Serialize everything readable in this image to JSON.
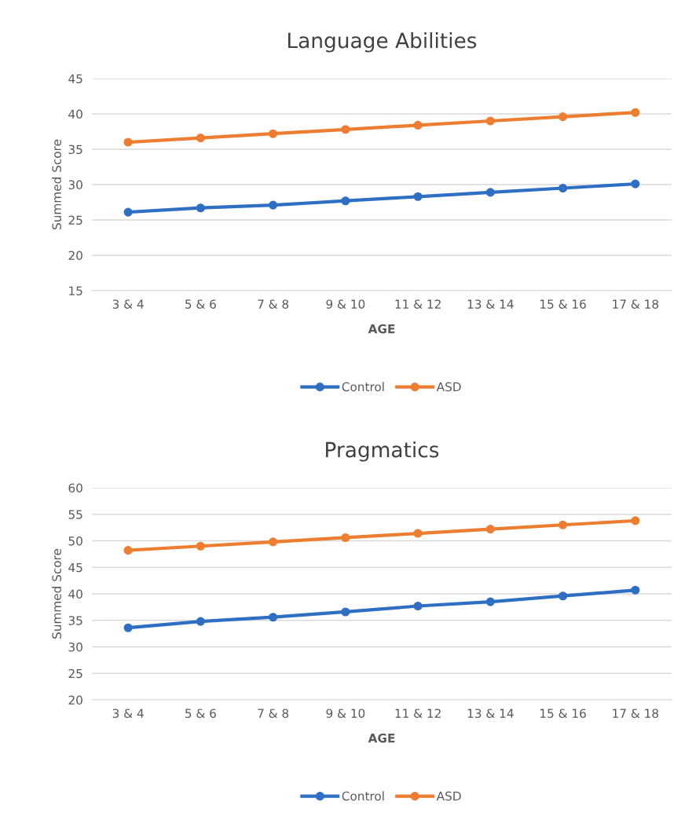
{
  "chart_data": [
    {
      "type": "line",
      "title": "Language Abilities",
      "xlabel": "AGE",
      "ylabel": "Summed Score",
      "categories": [
        "3 & 4",
        "5 & 6",
        "7 & 8",
        "9 & 10",
        "11 & 12",
        "13 & 14",
        "15 & 16",
        "17 & 18"
      ],
      "series": [
        {
          "name": "Control",
          "color": "#2e6fc4",
          "values": [
            26.1,
            26.7,
            27.1,
            27.7,
            28.3,
            28.9,
            29.5,
            30.1
          ]
        },
        {
          "name": "ASD",
          "color": "#ed7d31",
          "values": [
            36.0,
            36.6,
            37.2,
            37.8,
            38.4,
            39.0,
            39.6,
            40.2
          ]
        }
      ],
      "ylim": [
        15,
        45
      ],
      "yticks": [
        15,
        20,
        25,
        30,
        35,
        40,
        45
      ],
      "grid": "y",
      "legend": "bottom",
      "marker": "circle",
      "line_style": "solid"
    },
    {
      "type": "line",
      "title": "Pragmatics",
      "xlabel": "AGE",
      "ylabel": "Summed Score",
      "categories": [
        "3 & 4",
        "5 & 6",
        "7 & 8",
        "9 & 10",
        "11 & 12",
        "13 & 14",
        "15 & 16",
        "17 & 18"
      ],
      "series": [
        {
          "name": "Control",
          "color": "#2e6fc4",
          "values": [
            33.6,
            34.8,
            35.6,
            36.6,
            37.7,
            38.5,
            39.6,
            40.7
          ]
        },
        {
          "name": "ASD",
          "color": "#ed7d31",
          "values": [
            48.2,
            49.0,
            49.8,
            50.6,
            51.4,
            52.2,
            53.0,
            53.8
          ]
        }
      ],
      "ylim": [
        20,
        60
      ],
      "yticks": [
        20,
        25,
        30,
        35,
        40,
        45,
        50,
        55,
        60
      ],
      "grid": "y",
      "legend": "bottom",
      "marker": "circle",
      "line_style": "solid"
    }
  ]
}
